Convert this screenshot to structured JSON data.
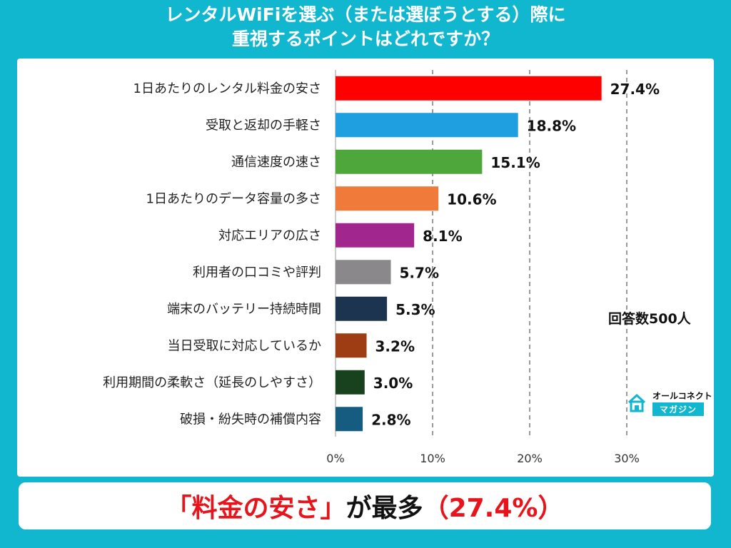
{
  "title": {
    "line1": "レンタルWiFiを選ぶ（または選ぼうとする）際に",
    "line2": "重視するポイントはどれですか？"
  },
  "respondents": "回答数500人",
  "brand": {
    "top": "オールコネクト",
    "bottom": "マガジン",
    "icon": "house-icon"
  },
  "conclusion": {
    "highlight": "「料金の安さ」",
    "middle": "が最多",
    "value": "（27.4%）"
  },
  "colors": {
    "background": "#11b6cf",
    "highlight": "#e8141b"
  },
  "chart_data": {
    "type": "bar",
    "orientation": "horizontal",
    "categories": [
      "1日あたりのレンタル料金の安さ",
      "受取と返却の手軽さ",
      "通信速度の速さ",
      "1日あたりのデータ容量の多さ",
      "対応エリアの広さ",
      "利用者の口コミや評判",
      "端末のバッテリー持続時間",
      "当日受取に対応しているか",
      "利用期間の柔軟さ（延長のしやすさ）",
      "破損・紛失時の補償内容"
    ],
    "values": [
      27.4,
      18.8,
      15.1,
      10.6,
      8.1,
      5.7,
      5.3,
      3.2,
      3.0,
      2.8
    ],
    "value_labels": [
      "27.4%",
      "18.8%",
      "15.1%",
      "10.6%",
      "8.1%",
      "5.7%",
      "5.3%",
      "3.2%",
      "3.0%",
      "2.8%"
    ],
    "colors": [
      "#ff0000",
      "#1f9ee0",
      "#4ea73a",
      "#f07a3a",
      "#a1278f",
      "#8a888a",
      "#1c3450",
      "#9e3d14",
      "#18421e",
      "#155c80"
    ],
    "xlim": [
      0,
      30
    ],
    "xticks": [
      0,
      10,
      20,
      30
    ],
    "xtick_labels": [
      "0%",
      "10%",
      "20%",
      "30%"
    ],
    "grid": "vertical dashed"
  }
}
